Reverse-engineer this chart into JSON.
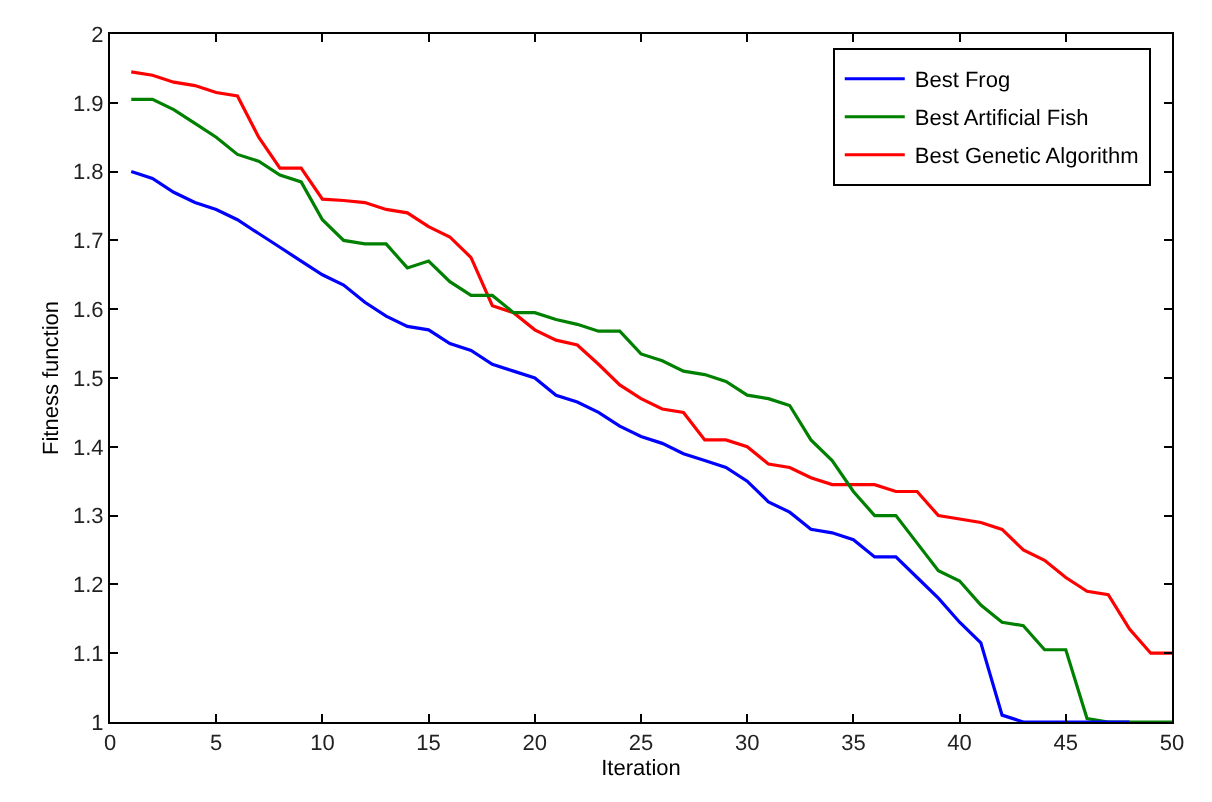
{
  "chart_data": {
    "type": "line",
    "xlabel": "Iteration",
    "ylabel": "Fitness function",
    "x": [
      1,
      2,
      3,
      4,
      5,
      6,
      7,
      8,
      9,
      10,
      11,
      12,
      13,
      14,
      15,
      16,
      17,
      18,
      19,
      20,
      21,
      22,
      23,
      24,
      25,
      26,
      27,
      28,
      29,
      30,
      31,
      32,
      33,
      34,
      35,
      36,
      37,
      38,
      39,
      40,
      41,
      42,
      43,
      44,
      45,
      46,
      47,
      48,
      49,
      50
    ],
    "series": [
      {
        "name": "Best Frog",
        "color": "#0000ff",
        "values": [
          1.8,
          1.79,
          1.77,
          1.755,
          1.745,
          1.73,
          1.71,
          1.69,
          1.67,
          1.65,
          1.635,
          1.61,
          1.59,
          1.575,
          1.57,
          1.55,
          1.54,
          1.52,
          1.51,
          1.5,
          1.475,
          1.465,
          1.45,
          1.43,
          1.415,
          1.405,
          1.39,
          1.38,
          1.37,
          1.35,
          1.32,
          1.305,
          1.28,
          1.275,
          1.265,
          1.24,
          1.24,
          1.21,
          1.18,
          1.145,
          1.115,
          1.01,
          1.0,
          1.0,
          1.0,
          1.0,
          1.0,
          1.0,
          null,
          null
        ]
      },
      {
        "name": "Best Artificial Fish",
        "color": "#008000",
        "values": [
          1.905,
          1.905,
          1.89,
          1.87,
          1.85,
          1.825,
          1.815,
          1.795,
          1.785,
          1.73,
          1.7,
          1.695,
          1.695,
          1.66,
          1.67,
          1.64,
          1.62,
          1.62,
          1.595,
          1.595,
          1.585,
          1.578,
          1.568,
          1.568,
          1.535,
          1.525,
          1.51,
          1.505,
          1.495,
          1.475,
          1.47,
          1.46,
          1.41,
          1.38,
          1.335,
          1.3,
          1.3,
          1.26,
          1.22,
          1.205,
          1.17,
          1.145,
          1.14,
          1.105,
          1.105,
          1.005,
          1.0,
          1.0,
          1.0,
          1.0
        ]
      },
      {
        "name": "Best Genetic Algorithm",
        "color": "#ff0000",
        "values": [
          1.945,
          1.94,
          1.93,
          1.925,
          1.915,
          1.91,
          1.85,
          1.805,
          1.805,
          1.76,
          1.758,
          1.755,
          1.745,
          1.74,
          1.72,
          1.705,
          1.675,
          1.605,
          1.595,
          1.57,
          1.555,
          1.548,
          1.52,
          1.49,
          1.47,
          1.455,
          1.45,
          1.41,
          1.41,
          1.4,
          1.375,
          1.37,
          1.355,
          1.345,
          1.345,
          1.345,
          1.335,
          1.335,
          1.3,
          1.295,
          1.29,
          1.28,
          1.25,
          1.235,
          1.21,
          1.19,
          1.185,
          1.135,
          1.1,
          1.1
        ]
      }
    ],
    "xlim": [
      0,
      50
    ],
    "xticks": [
      0,
      5,
      10,
      15,
      20,
      25,
      30,
      35,
      40,
      45,
      50
    ],
    "ylim": [
      1,
      2
    ],
    "yticks": [
      1,
      1.1,
      1.2,
      1.3,
      1.4,
      1.5,
      1.6,
      1.7,
      1.8,
      1.9,
      2
    ],
    "grid": false,
    "legend": "top right",
    "marker": "none",
    "line_style": "solid"
  }
}
